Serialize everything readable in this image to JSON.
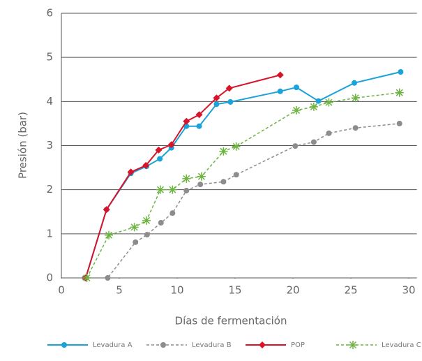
{
  "chart_data": {
    "type": "line",
    "x_label": "Días de fermentación",
    "y_label": "Presión (bar)",
    "xlim": [
      0,
      30.7
    ],
    "xticks": [
      0,
      5,
      10,
      15,
      20,
      25,
      30
    ],
    "ylim": [
      0,
      6
    ],
    "yticks": [
      0,
      1,
      2,
      3,
      4,
      5,
      6
    ],
    "grid": true,
    "legend": "bottom",
    "series": [
      {
        "name": "Levadura A",
        "color": "#1aa3d9",
        "marker": "circle",
        "dashed": false,
        "x": [
          2.1,
          3.9,
          6.0,
          7.35,
          8.5,
          9.5,
          10.8,
          11.9,
          13.4,
          14.6,
          18.9,
          20.3,
          22.2,
          25.3,
          29.3
        ],
        "values": [
          0,
          1.55,
          2.37,
          2.53,
          2.7,
          2.95,
          3.44,
          3.44,
          3.94,
          3.99,
          4.23,
          4.32,
          4.01,
          4.42,
          4.67
        ]
      },
      {
        "name": "Levadura B",
        "color": "#8c8c8c",
        "marker": "circle",
        "dashed": true,
        "x": [
          2.0,
          4.0,
          6.4,
          7.4,
          8.6,
          9.6,
          10.8,
          12.0,
          14.0,
          15.1,
          20.2,
          21.8,
          23.1,
          25.4,
          29.2
        ],
        "values": [
          0,
          0,
          0.81,
          0.98,
          1.25,
          1.47,
          1.98,
          2.12,
          2.18,
          2.34,
          2.99,
          3.08,
          3.28,
          3.4,
          3.5
        ]
      },
      {
        "name": "POP",
        "color": "#d7142a",
        "marker": "diamond",
        "dashed": false,
        "x": [
          2.1,
          3.9,
          6.0,
          7.3,
          8.4,
          9.5,
          10.8,
          11.9,
          13.4,
          14.5,
          18.9
        ],
        "values": [
          0,
          1.55,
          2.4,
          2.55,
          2.9,
          3.02,
          3.55,
          3.7,
          4.08,
          4.3,
          4.6
        ]
      },
      {
        "name": "Levadura C",
        "color": "#6db33f",
        "marker": "star",
        "dashed": true,
        "x": [
          2.2,
          4.1,
          6.3,
          7.35,
          8.55,
          9.6,
          10.8,
          12.1,
          14.0,
          15.1,
          20.3,
          21.8,
          23.1,
          25.4,
          29.2
        ],
        "values": [
          0,
          0.97,
          1.15,
          1.3,
          2.0,
          2.0,
          2.25,
          2.3,
          2.87,
          2.98,
          3.8,
          3.88,
          3.98,
          4.08,
          4.2
        ]
      }
    ]
  }
}
